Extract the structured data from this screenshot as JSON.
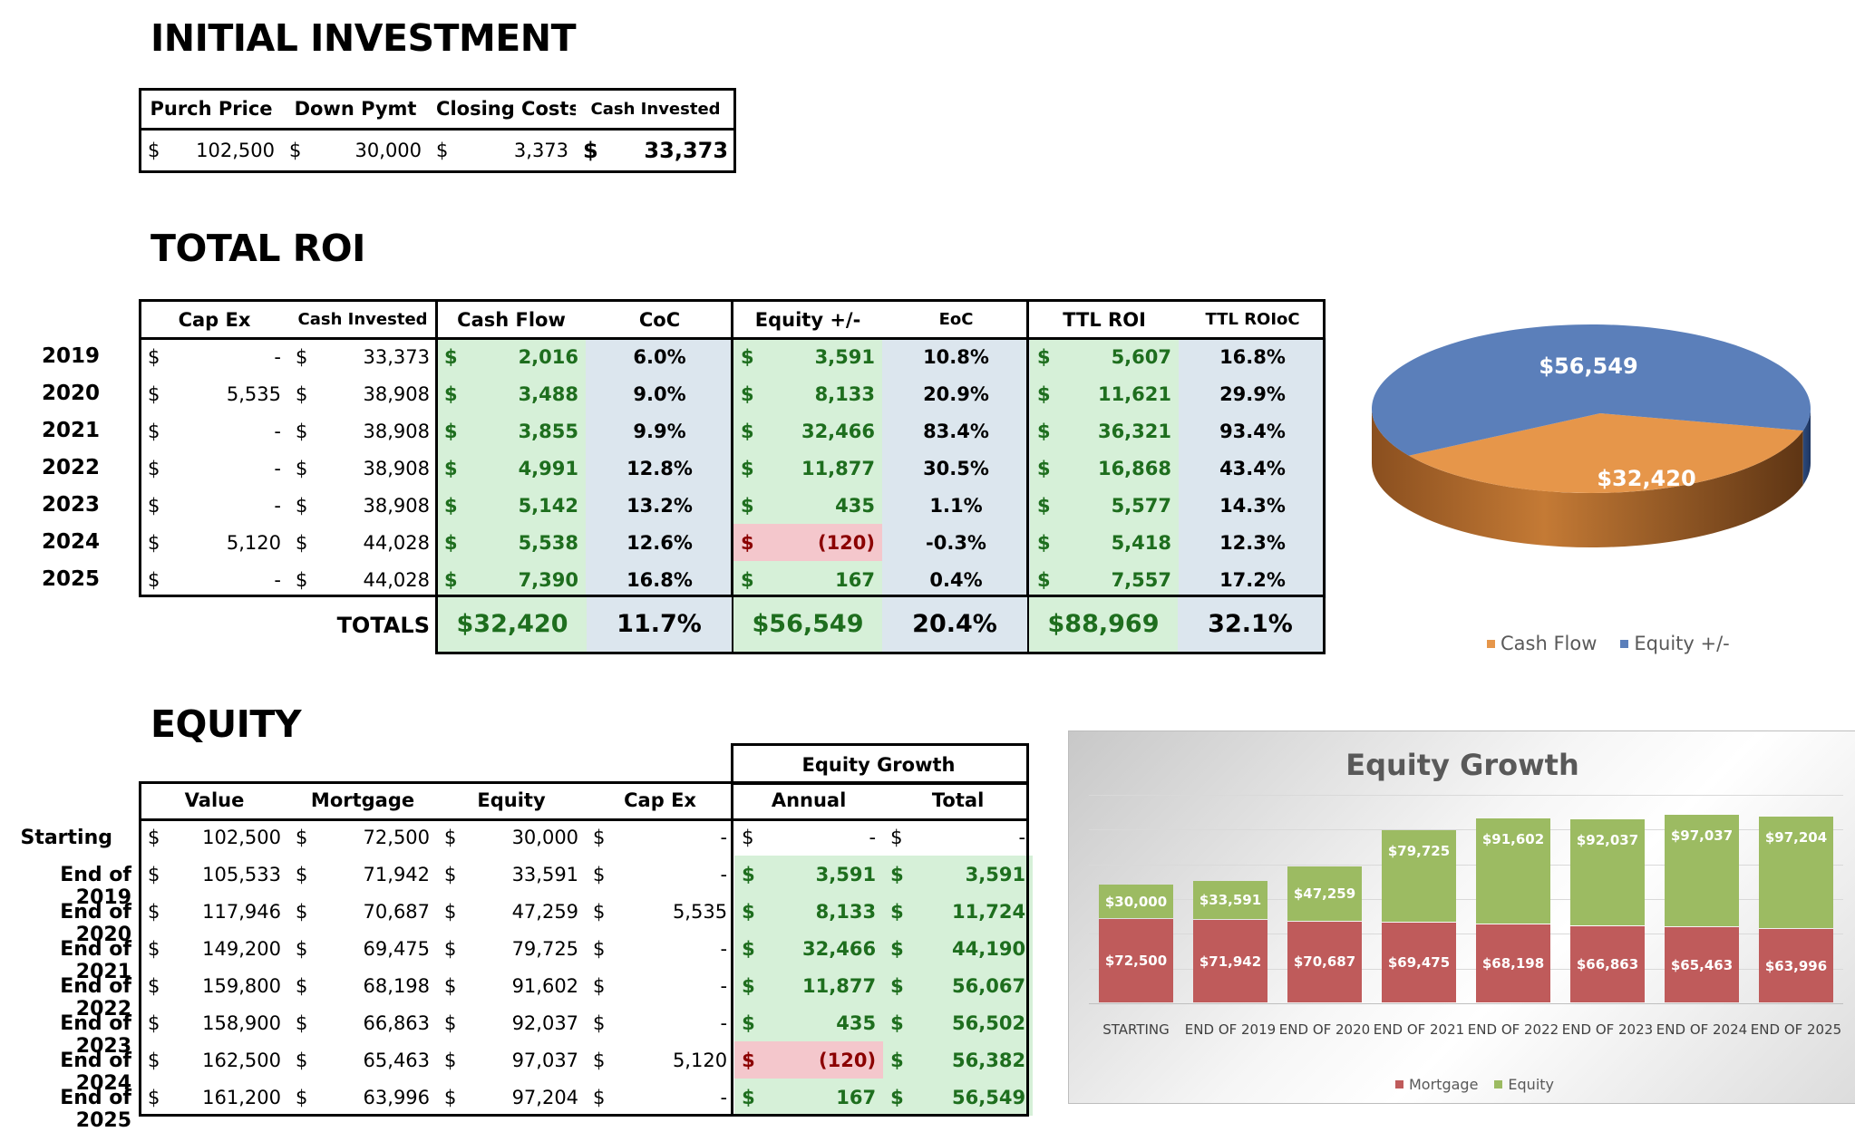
{
  "initial_investment": {
    "title": "INITIAL INVESTMENT",
    "headers": [
      "Purch Price",
      "Down Pymt",
      "Closing Costs",
      "Cash Invested"
    ],
    "values": [
      "102,500",
      "30,000",
      "3,373",
      "33,373"
    ],
    "currency": "$"
  },
  "total_roi": {
    "title": "TOTAL ROI",
    "headers": [
      "Cap Ex",
      "Cash Invested",
      "Cash Flow",
      "CoC",
      "Equity +/-",
      "EoC",
      "TTL ROI",
      "TTL ROIoC"
    ],
    "rows": [
      {
        "year": "2019",
        "capex": "-",
        "cash_invested": "33,373",
        "cash_flow": "2,016",
        "coc": "6.0%",
        "equity": "3,591",
        "eoc": "10.8%",
        "ttl_roi": "5,607",
        "ttl_roioc": "16.8%"
      },
      {
        "year": "2020",
        "capex": "5,535",
        "cash_invested": "38,908",
        "cash_flow": "3,488",
        "coc": "9.0%",
        "equity": "8,133",
        "eoc": "20.9%",
        "ttl_roi": "11,621",
        "ttl_roioc": "29.9%"
      },
      {
        "year": "2021",
        "capex": "-",
        "cash_invested": "38,908",
        "cash_flow": "3,855",
        "coc": "9.9%",
        "equity": "32,466",
        "eoc": "83.4%",
        "ttl_roi": "36,321",
        "ttl_roioc": "93.4%"
      },
      {
        "year": "2022",
        "capex": "-",
        "cash_invested": "38,908",
        "cash_flow": "4,991",
        "coc": "12.8%",
        "equity": "11,877",
        "eoc": "30.5%",
        "ttl_roi": "16,868",
        "ttl_roioc": "43.4%"
      },
      {
        "year": "2023",
        "capex": "-",
        "cash_invested": "38,908",
        "cash_flow": "5,142",
        "coc": "13.2%",
        "equity": "435",
        "eoc": "1.1%",
        "ttl_roi": "5,577",
        "ttl_roioc": "14.3%"
      },
      {
        "year": "2024",
        "capex": "5,120",
        "cash_invested": "44,028",
        "cash_flow": "5,538",
        "coc": "12.6%",
        "equity": "(120)",
        "eoc": "-0.3%",
        "ttl_roi": "5,418",
        "ttl_roioc": "12.3%"
      },
      {
        "year": "2025",
        "capex": "-",
        "cash_invested": "44,028",
        "cash_flow": "7,390",
        "coc": "16.8%",
        "equity": "167",
        "eoc": "0.4%",
        "ttl_roi": "7,557",
        "ttl_roioc": "17.2%"
      }
    ],
    "totals": {
      "label": "TOTALS",
      "cash_flow": "$32,420",
      "coc": "11.7%",
      "equity": "$56,549",
      "eoc": "20.4%",
      "ttl_roi": "$88,969",
      "ttl_roioc": "32.1%"
    }
  },
  "equity": {
    "title": "EQUITY",
    "group_header": "Equity Growth",
    "headers": [
      "Value",
      "Mortgage",
      "Equity",
      "Cap Ex",
      "Annual",
      "Total"
    ],
    "rows": [
      {
        "label": "Starting",
        "value": "102,500",
        "mortgage": "72,500",
        "equity": "30,000",
        "capex": "-",
        "annual": "-",
        "total": "-"
      },
      {
        "label": "End of 2019",
        "value": "105,533",
        "mortgage": "71,942",
        "equity": "33,591",
        "capex": "-",
        "annual": "3,591",
        "total": "3,591"
      },
      {
        "label": "End of 2020",
        "value": "117,946",
        "mortgage": "70,687",
        "equity": "47,259",
        "capex": "5,535",
        "annual": "8,133",
        "total": "11,724"
      },
      {
        "label": "End of 2021",
        "value": "149,200",
        "mortgage": "69,475",
        "equity": "79,725",
        "capex": "-",
        "annual": "32,466",
        "total": "44,190"
      },
      {
        "label": "End of 2022",
        "value": "159,800",
        "mortgage": "68,198",
        "equity": "91,602",
        "capex": "-",
        "annual": "11,877",
        "total": "56,067"
      },
      {
        "label": "End of 2023",
        "value": "158,900",
        "mortgage": "66,863",
        "equity": "92,037",
        "capex": "-",
        "annual": "435",
        "total": "56,502"
      },
      {
        "label": "End of 2024",
        "value": "162,500",
        "mortgage": "65,463",
        "equity": "97,037",
        "capex": "5,120",
        "annual": "(120)",
        "total": "56,382"
      },
      {
        "label": "End of 2025",
        "value": "161,200",
        "mortgage": "63,996",
        "equity": "97,204",
        "capex": "-",
        "annual": "167",
        "total": "56,549"
      }
    ]
  },
  "chart_data": [
    {
      "type": "pie",
      "title": "",
      "labels": [
        "Cash Flow",
        "Equity +/-"
      ],
      "values": [
        32420,
        56549
      ],
      "data_labels": [
        "$32,420",
        "$56,549"
      ],
      "colors": [
        "#e6964a",
        "#5b7fba"
      ],
      "legend": "bottom"
    },
    {
      "type": "bar",
      "stacked": true,
      "title": "Equity Growth",
      "categories": [
        "STARTING",
        "END OF 2019",
        "END OF 2020",
        "END OF 2021",
        "END OF 2022",
        "END OF 2023",
        "END OF 2024",
        "END OF 2025"
      ],
      "series": [
        {
          "name": "Mortgage",
          "color": "#bf5b5b",
          "values": [
            72500,
            71942,
            70687,
            69475,
            68198,
            66863,
            65463,
            63996
          ],
          "labels": [
            "$72,500",
            "$71,942",
            "$70,687",
            "$69,475",
            "$68,198",
            "$66,863",
            "$65,463",
            "$63,996"
          ]
        },
        {
          "name": "Equity",
          "color": "#9cbb62",
          "values": [
            30000,
            33591,
            47259,
            79725,
            91602,
            92037,
            97037,
            97204
          ],
          "labels": [
            "$30,000",
            "$33,591",
            "$47,259",
            "$79,725",
            "$91,602",
            "$92,037",
            "$97,037",
            "$97,204"
          ]
        }
      ],
      "grid": true,
      "legend": "bottom"
    }
  ]
}
